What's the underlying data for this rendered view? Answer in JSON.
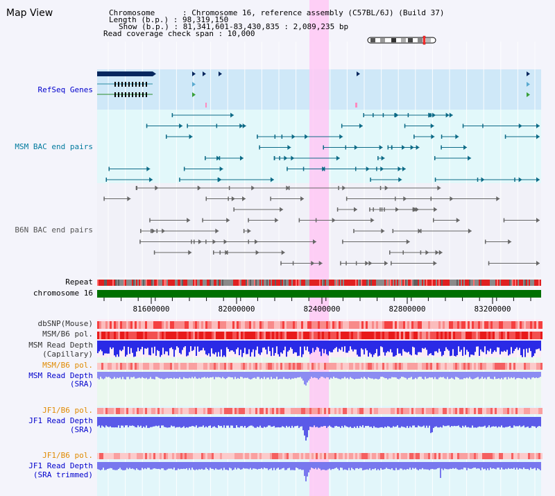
{
  "view": {
    "title": "Map View"
  },
  "info": {
    "lines": [
      "Chromosome      : Chromosome 16, reference assembly (C57BL/6J) (Build 37)",
      "Length (b.p.) : 98,319,150",
      "Show (b.p.) : 81,341,601-83,430,835 : 2,089,235 bp",
      "Read coverage check span : 10,000"
    ]
  },
  "tracks": {
    "refseq": "RefSeq Genes",
    "msm_bac": "MSM BAC end pairs",
    "b6n_bac": "B6N BAC end pairs",
    "repeat": "Repeat",
    "chromosome": "chromosome 16",
    "dbsnp": "dbSNP(Mouse)",
    "msm_b6_pol_1": "MSM/B6 pol.",
    "msm_depth_cap_1": "MSM Read Depth",
    "msm_depth_cap_2": "(Capillary)",
    "msm_b6_pol_2": "MSM/B6 pol.",
    "msm_depth_sra_1": "MSM Read Depth",
    "msm_depth_sra_2": "(SRA)",
    "jf1_b6_pol_1": "JF1/B6 pol.",
    "jf1_depth_sra_1": "JF1 Read Depth",
    "jf1_depth_sra_2": "(SRA)",
    "jf1_b6_pol_2": "JF1/B6 pol.",
    "jf1_depth_trim_1": "JF1 Read Depth",
    "jf1_depth_trim_2": "(SRA trimmed)"
  },
  "axis": {
    "ticks": [
      "81600000",
      "82000000",
      "82400000",
      "82800000",
      "83200000"
    ]
  },
  "colors": {
    "refseq_label": "#0000cc",
    "msm_bac_label": "#007a9e",
    "b6n_bac_label": "#555555",
    "pol_label": "#e08a00",
    "depth_label": "#0000cc",
    "chromosome_bar": "#007000",
    "highlight": "#ffc8f4"
  }
}
